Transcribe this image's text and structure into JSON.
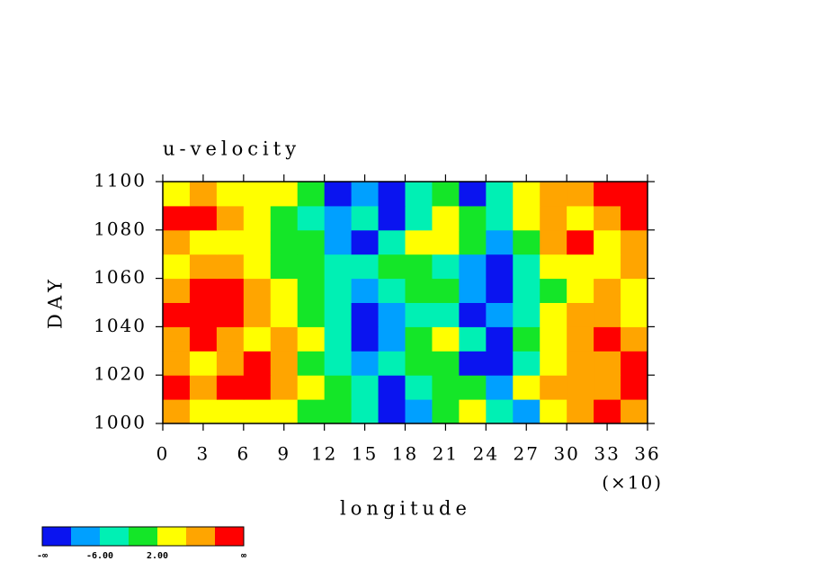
{
  "chart_data": {
    "type": "heatmap",
    "title": "u-velocity",
    "xlabel": "longitude",
    "ylabel": "DAY",
    "xmultiplier": "(×10)",
    "xlim": [
      0,
      36
    ],
    "ylim": [
      1000,
      1100
    ],
    "xticks": [
      0,
      3,
      6,
      9,
      12,
      15,
      18,
      21,
      24,
      27,
      30,
      33,
      36
    ],
    "yticks": [
      1000,
      1020,
      1040,
      1060,
      1080,
      1100
    ],
    "x": [
      1,
      3,
      5,
      7,
      9,
      11,
      13,
      15,
      17,
      19,
      21,
      23,
      25,
      27,
      29,
      31,
      33,
      35
    ],
    "y": [
      1005,
      1015,
      1025,
      1035,
      1045,
      1055,
      1065,
      1075,
      1085,
      1095
    ],
    "z": [
      [
        6,
        4,
        3,
        2,
        3,
        0,
        -2,
        -4,
        -12,
        -8,
        -2,
        2,
        -4,
        -8,
        2,
        8,
        11,
        6
      ],
      [
        12,
        8,
        10,
        12,
        6,
        2,
        0,
        -6,
        -12,
        -6,
        0,
        -2,
        -8,
        2,
        6,
        8,
        6,
        12
      ],
      [
        8,
        4,
        6,
        10,
        8,
        0,
        -4,
        -8,
        -4,
        0,
        -2,
        -12,
        -12,
        -6,
        2,
        6,
        8,
        12
      ],
      [
        6,
        10,
        8,
        4,
        6,
        2,
        -4,
        -12,
        -8,
        -2,
        2,
        -4,
        -12,
        -2,
        4,
        6,
        11,
        8
      ],
      [
        10,
        12,
        10,
        8,
        4,
        0,
        -6,
        -12,
        -8,
        -4,
        -6,
        -12,
        -8,
        -4,
        2,
        6,
        8,
        4
      ],
      [
        6,
        12,
        12,
        6,
        2,
        -2,
        -4,
        -8,
        -6,
        -2,
        0,
        -8,
        -12,
        -6,
        0,
        4,
        6,
        4
      ],
      [
        4,
        8,
        6,
        3,
        0,
        -2,
        -6,
        -4,
        -2,
        0,
        -4,
        -10,
        -12,
        -6,
        2,
        4,
        2,
        6
      ],
      [
        6,
        4,
        2,
        4,
        0,
        -2,
        -8,
        -12,
        -6,
        2,
        4,
        0,
        -10,
        0,
        6,
        11,
        4,
        6
      ],
      [
        10,
        12,
        6,
        2,
        0,
        -4,
        -8,
        -4,
        -12,
        -6,
        2,
        -2,
        -6,
        4,
        6,
        4,
        8,
        10
      ],
      [
        4,
        6,
        2,
        4,
        2,
        -2,
        -12,
        -8,
        -12,
        -4,
        -2,
        -12,
        -6,
        4,
        6,
        8,
        12,
        10
      ]
    ],
    "levels": [
      -10,
      -6,
      -2,
      2,
      6,
      10
    ],
    "colors": [
      "#0a14f0",
      "#00a0ff",
      "#00f0b4",
      "#14e628",
      "#ffff00",
      "#ffa500",
      "#ff0000"
    ],
    "colorbar": {
      "low_label": "-∞",
      "high_label": "∞",
      "ticks": [
        {
          "value": -6,
          "label": "-6.00"
        },
        {
          "value": 2,
          "label": "2.00"
        }
      ]
    }
  }
}
